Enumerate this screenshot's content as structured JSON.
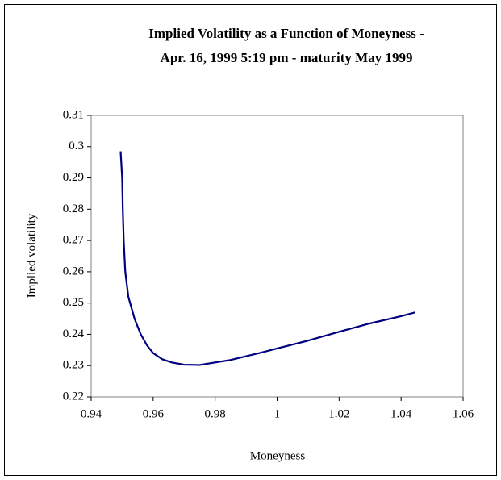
{
  "chart_data": {
    "type": "line",
    "title": [
      "Implied Volatility as a Function of Moneyness -",
      "Apr. 16, 1999 5:19 pm - maturity May 1999"
    ],
    "x_label": "Moneyness",
    "y_label": "Implied volatility",
    "x": [
      0.9495,
      0.95,
      0.9502,
      0.9505,
      0.951,
      0.952,
      0.954,
      0.956,
      0.958,
      0.96,
      0.963,
      0.966,
      0.97,
      0.975,
      0.98,
      0.985,
      0.99,
      0.995,
      1.0,
      1.01,
      1.02,
      1.03,
      1.04,
      1.0445
    ],
    "series": [
      {
        "color": "#000080",
        "values": [
          0.2985,
          0.29,
          0.28,
          0.27,
          0.26,
          0.252,
          0.245,
          0.24,
          0.2365,
          0.234,
          0.232,
          0.231,
          0.2303,
          0.2302,
          0.231,
          0.2318,
          0.233,
          0.2342,
          0.2355,
          0.238,
          0.2408,
          0.2435,
          0.2458,
          0.247
        ]
      }
    ],
    "xlim": [
      0.94,
      1.06
    ],
    "xticks": [
      0.94,
      0.96,
      0.98,
      1,
      1.02,
      1.04,
      1.06
    ],
    "ylim": [
      0.22,
      0.31
    ],
    "yticks": [
      0.22,
      0.23,
      0.24,
      0.25,
      0.26,
      0.27,
      0.28,
      0.29,
      0.3,
      0.31
    ],
    "grid": false
  }
}
